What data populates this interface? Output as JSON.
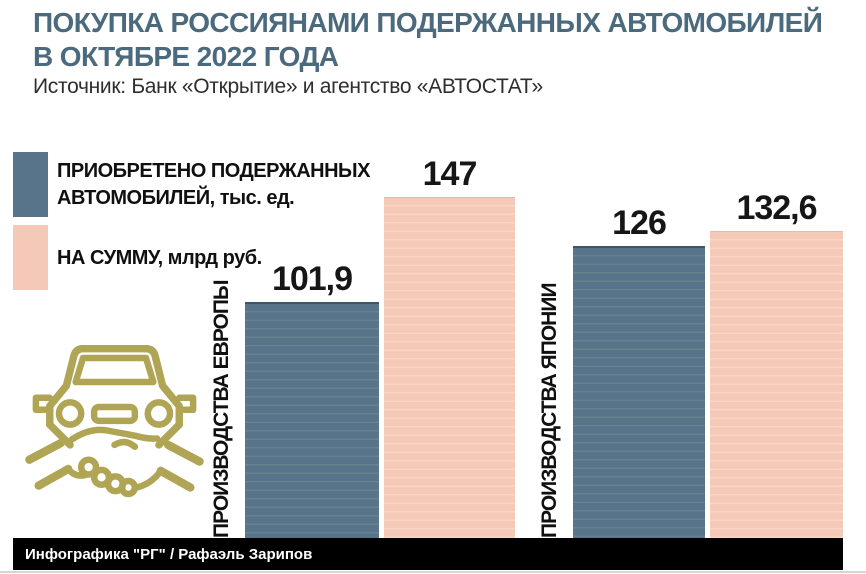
{
  "header": {
    "title_line1": "ПОКУПКА РОССИЯНАМИ ПОДЕРЖАННЫХ АВТОМОБИЛЕЙ",
    "title_line2": "В ОКТЯБРЕ 2022 ГОДА",
    "source": "Источник: Банк «Открытие» и агентство «АВТОСТАТ»"
  },
  "legend": {
    "items": [
      {
        "swatch_color": "#57748a",
        "lines": [
          "ПРИОБРЕТЕНО ПОДЕРЖАННЫХ",
          "АВТОМОБИЛЕЙ, тыс. ед."
        ]
      },
      {
        "swatch_color": "#f5c9b7",
        "lines": [
          "НА СУММУ, млрд руб."
        ]
      }
    ]
  },
  "chart_data": {
    "type": "bar",
    "title": "ПОКУПКА РОССИЯНАМИ ПОДЕРЖАННЫХ АВТОМОБИЛЕЙ В ОКТЯБРЕ 2022 ГОДА",
    "subtitle": "Источник: Банк «Открытие» и агентство «АВТОСТАТ»",
    "categories": [
      "ПРОИЗВОДСТВА ЕВРОПЫ",
      "ПРОИЗВОДСТВА ЯПОНИИ"
    ],
    "series": [
      {
        "name": "ПРИОБРЕТЕНО ПОДЕРЖАННЫХ АВТОМОБИЛЕЙ, тыс. ед.",
        "color": "#57748a",
        "values": [
          101.9,
          126
        ]
      },
      {
        "name": "НА СУММУ, млрд руб.",
        "color": "#f5c9b7",
        "values": [
          147,
          132.6
        ]
      }
    ],
    "ylim": [
      0,
      155
    ],
    "grid": false,
    "legend_position": "top-left",
    "orientation": "vertical"
  },
  "groups": [
    {
      "category": "ПРОИЗВОДСТВА ЕВРОПЫ",
      "purchased_label": "101,9",
      "sum_label": "147"
    },
    {
      "category": "ПРОИЗВОДСТВА ЯПОНИИ",
      "purchased_label": "126",
      "sum_label": "132,6"
    }
  ],
  "icons": {
    "car_handshake": "car-front-with-handshake outline",
    "color": "#b0a455"
  },
  "colors": {
    "bar_blue": "#57748a",
    "bar_pink": "#f5c9b7",
    "title": "#4b6a7d",
    "icon": "#b0a455",
    "footer_bg": "#000000",
    "footer_text": "#ffffff"
  },
  "footer": {
    "credit": "Инфографика \"РГ\" / Рафаэль Зарипов"
  }
}
